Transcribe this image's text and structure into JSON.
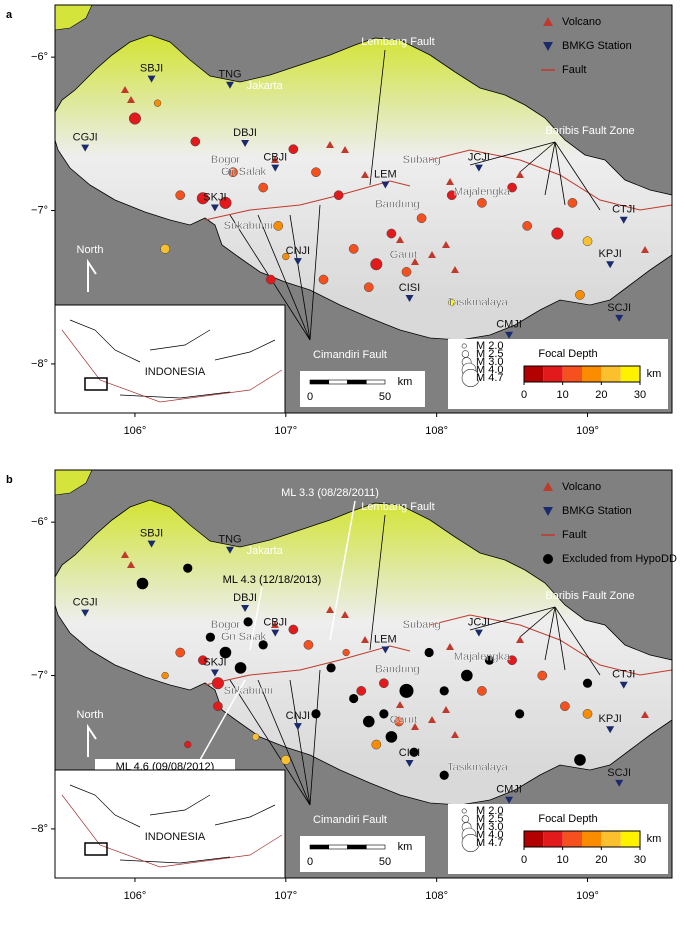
{
  "map": {
    "xlim": [
      105.47,
      109.56
    ],
    "ylim": [
      -8.32,
      -5.66
    ],
    "xticks": [
      {
        "value": 106,
        "label": "106°"
      },
      {
        "value": 107,
        "label": "107°"
      },
      {
        "value": 108,
        "label": "108°"
      },
      {
        "value": 109,
        "label": "109°"
      }
    ],
    "yticks": [
      {
        "value": -6,
        "label": "−6°"
      },
      {
        "value": -7,
        "label": "−7°"
      },
      {
        "value": -8,
        "label": "−8°"
      }
    ],
    "stations": [
      {
        "name": "SBJI",
        "lon": 106.11,
        "lat": -6.14
      },
      {
        "name": "TNG",
        "lon": 106.63,
        "lat": -6.18
      },
      {
        "name": "CGJI",
        "lon": 105.67,
        "lat": -6.59
      },
      {
        "name": "DBJI",
        "lon": 106.73,
        "lat": -6.56
      },
      {
        "name": "CBJI",
        "lon": 106.93,
        "lat": -6.72
      },
      {
        "name": "SKJI",
        "lon": 106.53,
        "lat": -6.98
      },
      {
        "name": "CNJI",
        "lon": 107.08,
        "lat": -7.33
      },
      {
        "name": "JCJI",
        "lon": 108.28,
        "lat": -6.72
      },
      {
        "name": "CTJI",
        "lon": 109.24,
        "lat": -7.06
      },
      {
        "name": "KPJI",
        "lon": 109.15,
        "lat": -7.35
      },
      {
        "name": "CISI",
        "lon": 107.82,
        "lat": -7.57
      },
      {
        "name": "CMJI",
        "lon": 108.48,
        "lat": -7.81
      },
      {
        "name": "SCJI",
        "lon": 109.21,
        "lat": -7.7
      },
      {
        "name": "LEM",
        "lon": 107.66,
        "lat": -6.83
      }
    ],
    "places": [
      {
        "name": "Jakarta",
        "lon": 106.86,
        "lat": -6.19
      },
      {
        "name": "Bogor",
        "lon": 106.6,
        "lat": -6.67
      },
      {
        "name": "Gn Salak",
        "lon": 106.72,
        "lat": -6.75
      },
      {
        "name": "Sukabumi",
        "lon": 106.75,
        "lat": -7.1
      },
      {
        "name": "Bandung",
        "lon": 107.74,
        "lat": -6.96
      },
      {
        "name": "Garut",
        "lon": 107.78,
        "lat": -7.29
      },
      {
        "name": "Tasikmalaya",
        "lon": 108.27,
        "lat": -7.6
      },
      {
        "name": "Subang",
        "lon": 107.9,
        "lat": -6.67
      },
      {
        "name": "Majalengka",
        "lon": 108.3,
        "lat": -6.88
      }
    ],
    "faults": [
      "Lembang Fault",
      "Baribis Fault Zone",
      "Cimandiri Fault"
    ],
    "north": "North",
    "inset": "INDONESIA",
    "scale": {
      "ticks": [
        0,
        50
      ],
      "unit": "km"
    },
    "colorbar": {
      "title": "Focal Depth",
      "unit": "km",
      "lim": [
        0,
        30
      ],
      "ticks": [
        0,
        10,
        20,
        30
      ],
      "colors": [
        "#b30000",
        "#e31a1c",
        "#f4511e",
        "#fb8c00",
        "#fbc02d",
        "#fff200"
      ]
    },
    "magnitudes": [
      {
        "value": 2.0,
        "label": "M 2.0"
      },
      {
        "value": 2.5,
        "label": "M 2.5"
      },
      {
        "value": 3.0,
        "label": "M 3.0"
      },
      {
        "value": 4.0,
        "label": "M 4.0"
      },
      {
        "value": 4.7,
        "label": "M 4.7"
      }
    ]
  },
  "panels": [
    {
      "label": "a",
      "legend": [
        "Volcano",
        "BMKG Station",
        "Fault"
      ],
      "events": {
        "lon": [
          106.0,
          106.15,
          106.4,
          106.3,
          106.45,
          106.6,
          106.65,
          106.85,
          106.95,
          107.05,
          107.2,
          107.35,
          107.45,
          107.6,
          107.7,
          107.8,
          107.55,
          107.9,
          108.1,
          108.3,
          108.5,
          108.6,
          108.8,
          108.9,
          109.0,
          108.95,
          106.9,
          107.25,
          106.2,
          108.1,
          107.0
        ],
        "lat": [
          -6.4,
          -6.3,
          -6.55,
          -6.9,
          -6.92,
          -6.95,
          -6.75,
          -6.85,
          -7.1,
          -6.6,
          -6.75,
          -6.9,
          -7.25,
          -7.35,
          -7.15,
          -7.4,
          -7.5,
          -7.05,
          -6.9,
          -6.95,
          -6.85,
          -7.1,
          -7.15,
          -6.95,
          -7.2,
          -7.55,
          -7.45,
          -7.45,
          -7.25,
          -7.6,
          -7.3
        ],
        "depth": [
          5,
          15,
          8,
          12,
          5,
          8,
          12,
          10,
          15,
          8,
          10,
          5,
          10,
          8,
          6,
          12,
          10,
          10,
          8,
          12,
          8,
          10,
          5,
          10,
          20,
          18,
          8,
          12,
          22,
          25,
          15
        ],
        "mag": [
          3.5,
          2.5,
          3,
          3,
          3.5,
          3.5,
          3,
          3,
          3,
          3,
          3,
          3,
          3,
          3.5,
          3,
          3,
          3,
          3,
          3,
          3,
          3,
          3,
          3.5,
          3,
          3,
          3,
          3,
          3,
          3,
          2.5,
          2.5
        ]
      }
    },
    {
      "label": "b",
      "legend": [
        "Volcano",
        "BMKG Station",
        "Fault",
        "Excluded from HypoDD"
      ],
      "annotations": [
        "ML 3.3 (08/28/2011)",
        "ML 4.3 (12/18/2013)",
        "ML 4.6 (09/08/2012)"
      ],
      "events": {
        "lon": [
          106.3,
          106.45,
          106.2,
          106.55,
          106.55,
          106.35,
          107.05,
          107.15,
          107.4,
          107.5,
          107.65,
          107.75,
          107.6,
          108.3,
          108.5,
          108.7,
          108.85,
          109.0,
          107.0,
          106.8
        ],
        "lat": [
          -6.85,
          -6.9,
          -7.0,
          -7.05,
          -7.2,
          -7.45,
          -6.7,
          -6.8,
          -6.85,
          -7.1,
          -7.05,
          -7.3,
          -7.45,
          -7.1,
          -6.9,
          -7.0,
          -7.2,
          -7.25,
          -7.55,
          -7.4
        ],
        "depth": [
          12,
          8,
          18,
          6,
          8,
          5,
          8,
          10,
          12,
          8,
          5,
          10,
          15,
          10,
          8,
          12,
          10,
          18,
          20,
          22
        ],
        "mag": [
          3,
          3,
          2.5,
          3.5,
          3,
          2.5,
          3,
          3,
          2.5,
          3,
          3,
          3,
          3,
          3,
          3,
          3,
          3,
          3,
          3,
          2.5
        ]
      },
      "excluded": {
        "lon": [
          106.05,
          106.35,
          106.5,
          106.6,
          106.7,
          106.75,
          106.85,
          107.2,
          107.3,
          107.45,
          107.55,
          107.65,
          107.7,
          107.8,
          107.85,
          108.05,
          108.2,
          108.35,
          108.55,
          108.05,
          109.0,
          108.95,
          107.95
        ],
        "lat": [
          -6.4,
          -6.3,
          -6.75,
          -6.85,
          -6.95,
          -6.65,
          -6.8,
          -7.25,
          -6.95,
          -7.15,
          -7.3,
          -7.25,
          -7.4,
          -7.1,
          -7.5,
          -7.1,
          -7.0,
          -6.9,
          -7.25,
          -7.65,
          -7.05,
          -7.55,
          -6.85
        ],
        "mag": [
          3.5,
          3,
          3,
          3.5,
          3.5,
          3,
          3,
          3,
          3,
          3,
          3.5,
          3,
          3.5,
          4,
          3,
          3,
          3.5,
          3,
          3,
          3,
          3,
          3.5,
          3
        ]
      }
    }
  ]
}
